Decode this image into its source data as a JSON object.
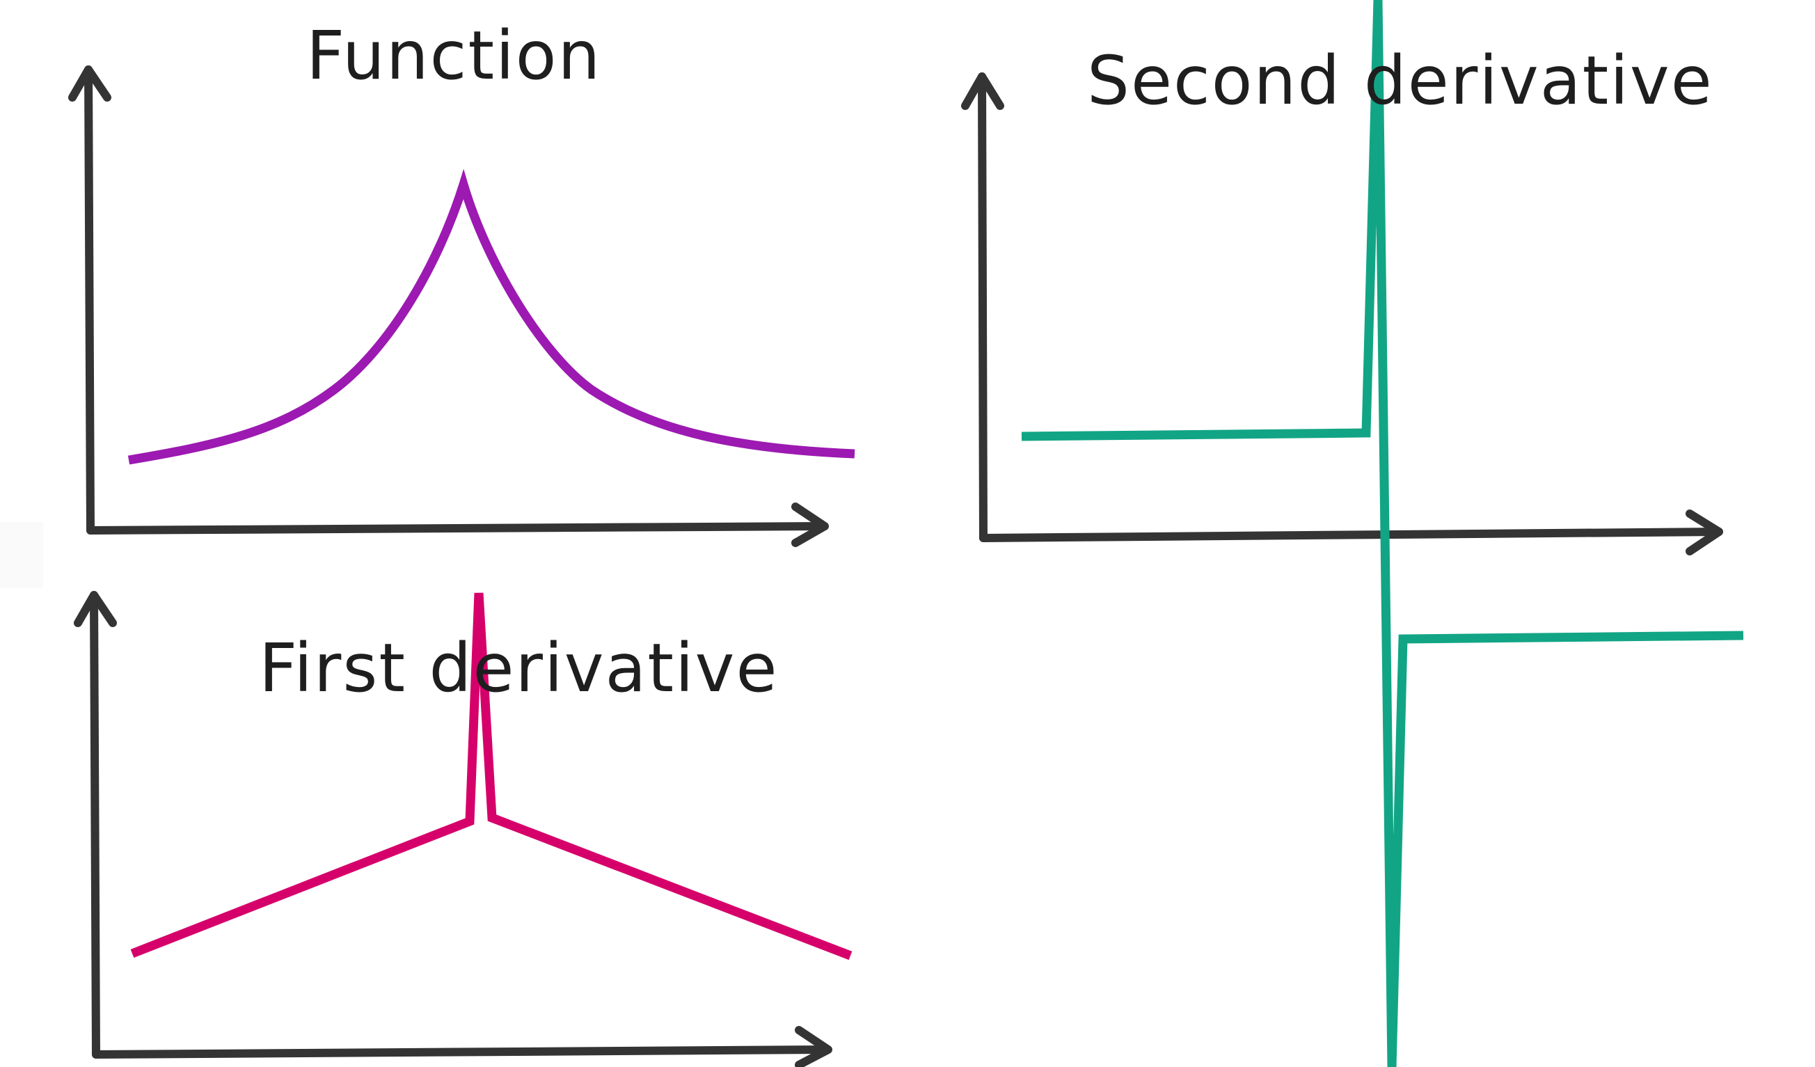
{
  "panels": {
    "function": {
      "title": "Function",
      "stroke": "#9c1ab1"
    },
    "first_derivative": {
      "title": "First derivative",
      "stroke": "#d6006b"
    },
    "second_derivative": {
      "title": "Second derivative",
      "stroke": "#12a585"
    }
  },
  "axis_color": "#343434",
  "background": "#ffffff"
}
